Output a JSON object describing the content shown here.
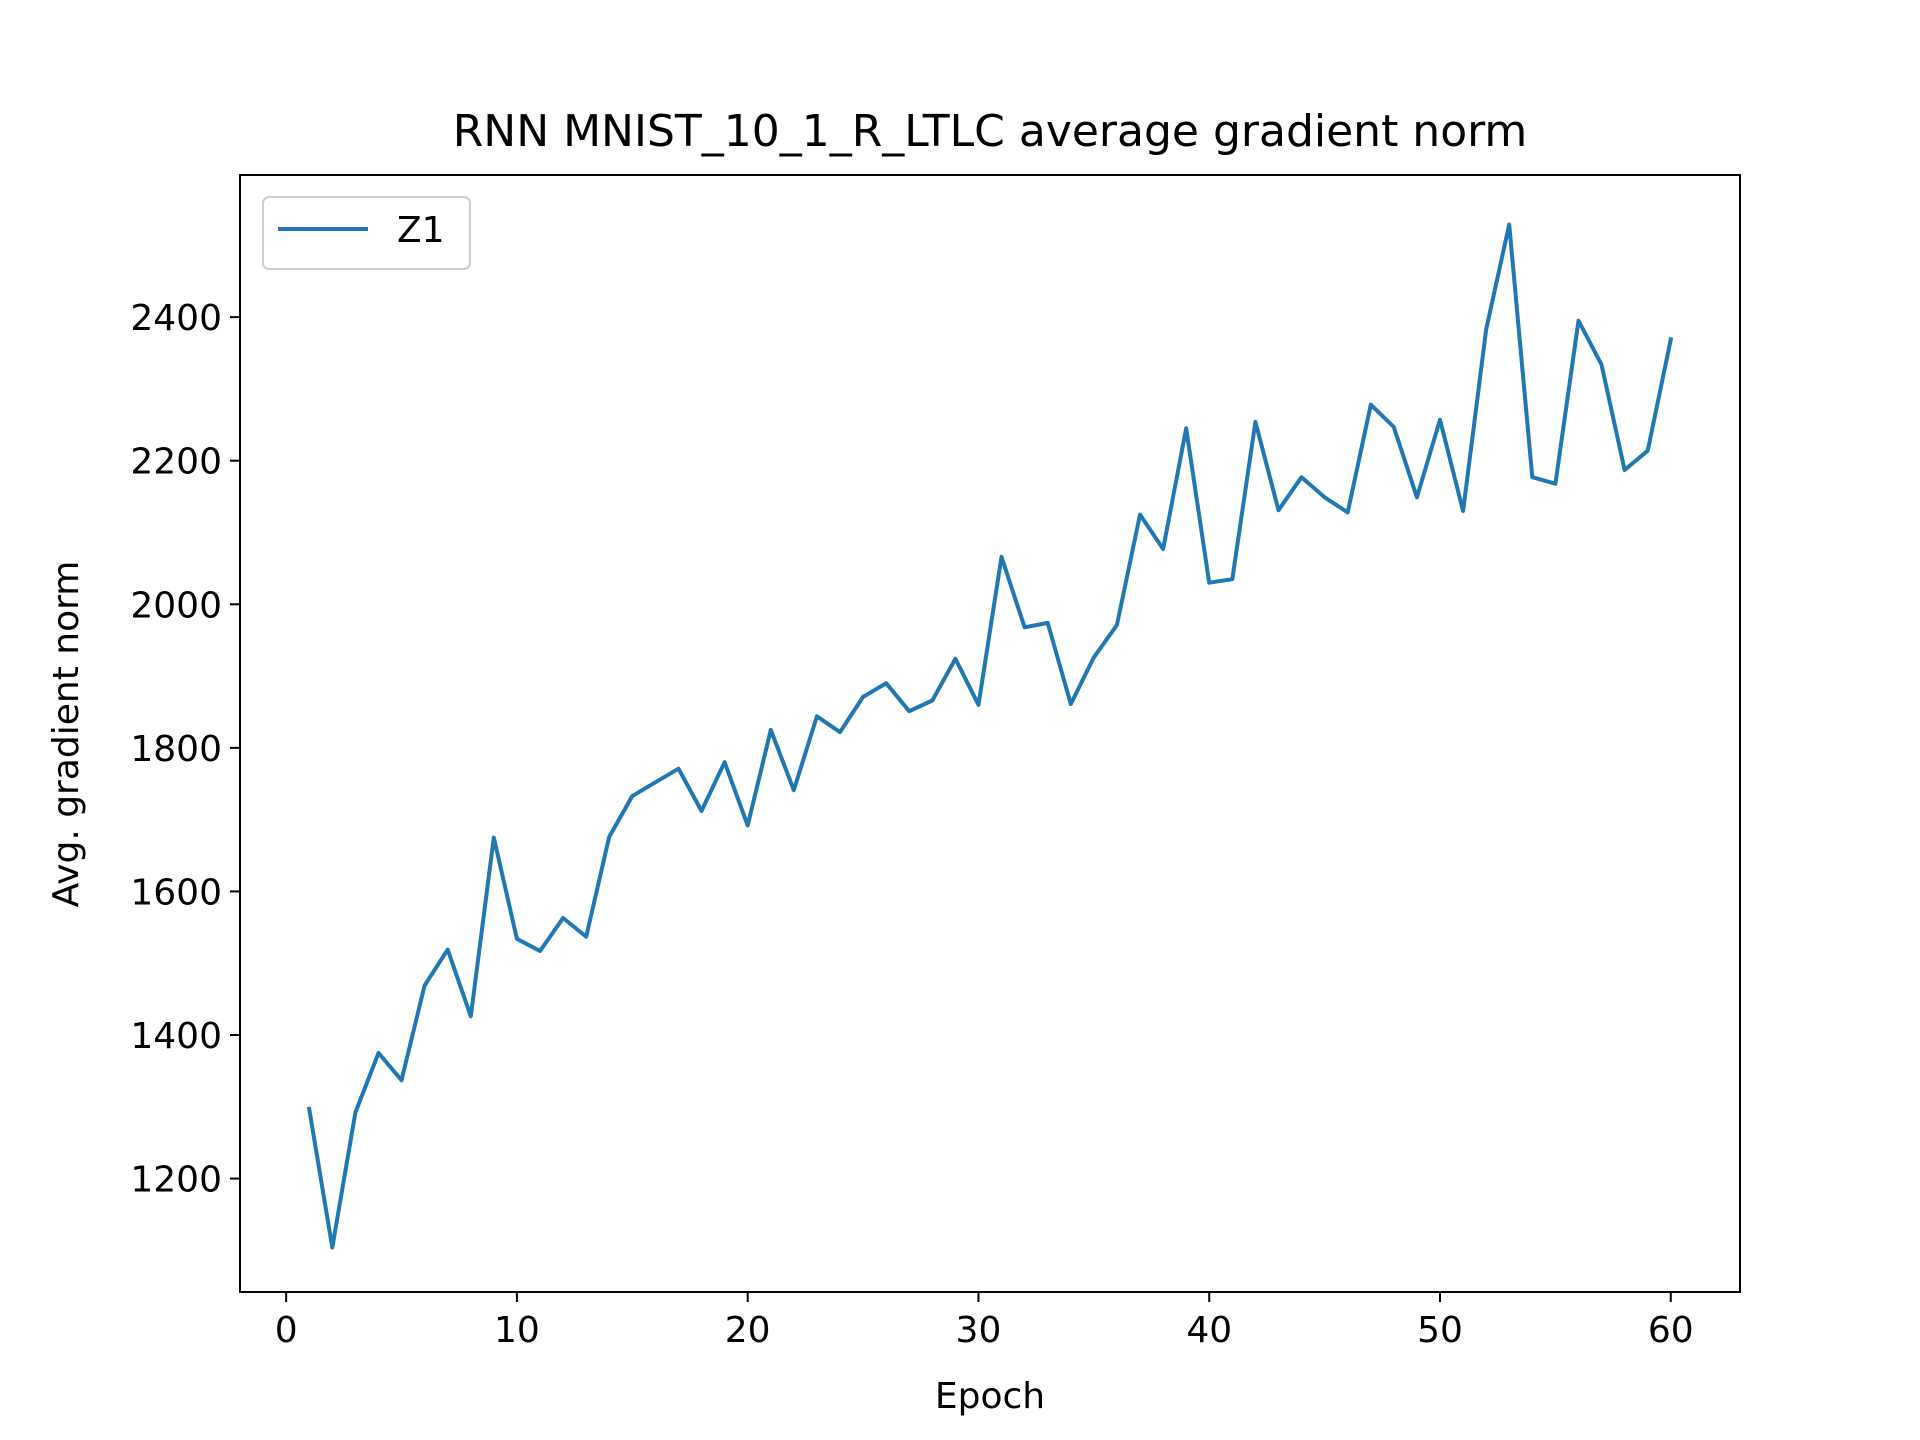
{
  "chart_data": {
    "type": "line",
    "title": "RNN MNIST_10_1_R_LTLC average gradient norm",
    "xlabel": "Epoch",
    "ylabel": "Avg. gradient norm",
    "xlim": [
      -2,
      63
    ],
    "ylim": [
      1042,
      2598
    ],
    "xticks": [
      0,
      10,
      20,
      30,
      40,
      50,
      60
    ],
    "yticks": [
      1200,
      1400,
      1600,
      1800,
      2000,
      2200,
      2400
    ],
    "xtick_labels": [
      "0",
      "10",
      "20",
      "30",
      "40",
      "50",
      "60"
    ],
    "ytick_labels": [
      "1200",
      "1400",
      "1600",
      "1800",
      "2000",
      "2200",
      "2400"
    ],
    "grid": false,
    "legend_position": "upper-left",
    "series": [
      {
        "name": "Z1",
        "color": "#1f77b4",
        "x": [
          1,
          2,
          3,
          4,
          5,
          6,
          7,
          8,
          9,
          10,
          11,
          12,
          13,
          14,
          15,
          16,
          17,
          18,
          19,
          20,
          21,
          22,
          23,
          24,
          25,
          26,
          27,
          28,
          29,
          30,
          31,
          32,
          33,
          34,
          35,
          36,
          37,
          38,
          39,
          40,
          41,
          42,
          43,
          44,
          45,
          46,
          47,
          48,
          49,
          50,
          51,
          52,
          53,
          54,
          55,
          56,
          57,
          58,
          59,
          60
        ],
        "y": [
          1297,
          1104,
          1292,
          1375,
          1337,
          1469,
          1519,
          1426,
          1675,
          1534,
          1517,
          1563,
          1537,
          1676,
          1733,
          1752,
          1771,
          1712,
          1780,
          1692,
          1825,
          1741,
          1844,
          1822,
          1871,
          1890,
          1851,
          1866,
          1924,
          1860,
          2066,
          1968,
          1974,
          1861,
          1926,
          1971,
          2125,
          2077,
          2245,
          2030,
          2035,
          2254,
          2131,
          2177,
          2149,
          2128,
          2278,
          2247,
          2149,
          2257,
          2130,
          2383,
          2529,
          2177,
          2168,
          2395,
          2334,
          2187,
          2214,
          2369
        ]
      }
    ]
  }
}
